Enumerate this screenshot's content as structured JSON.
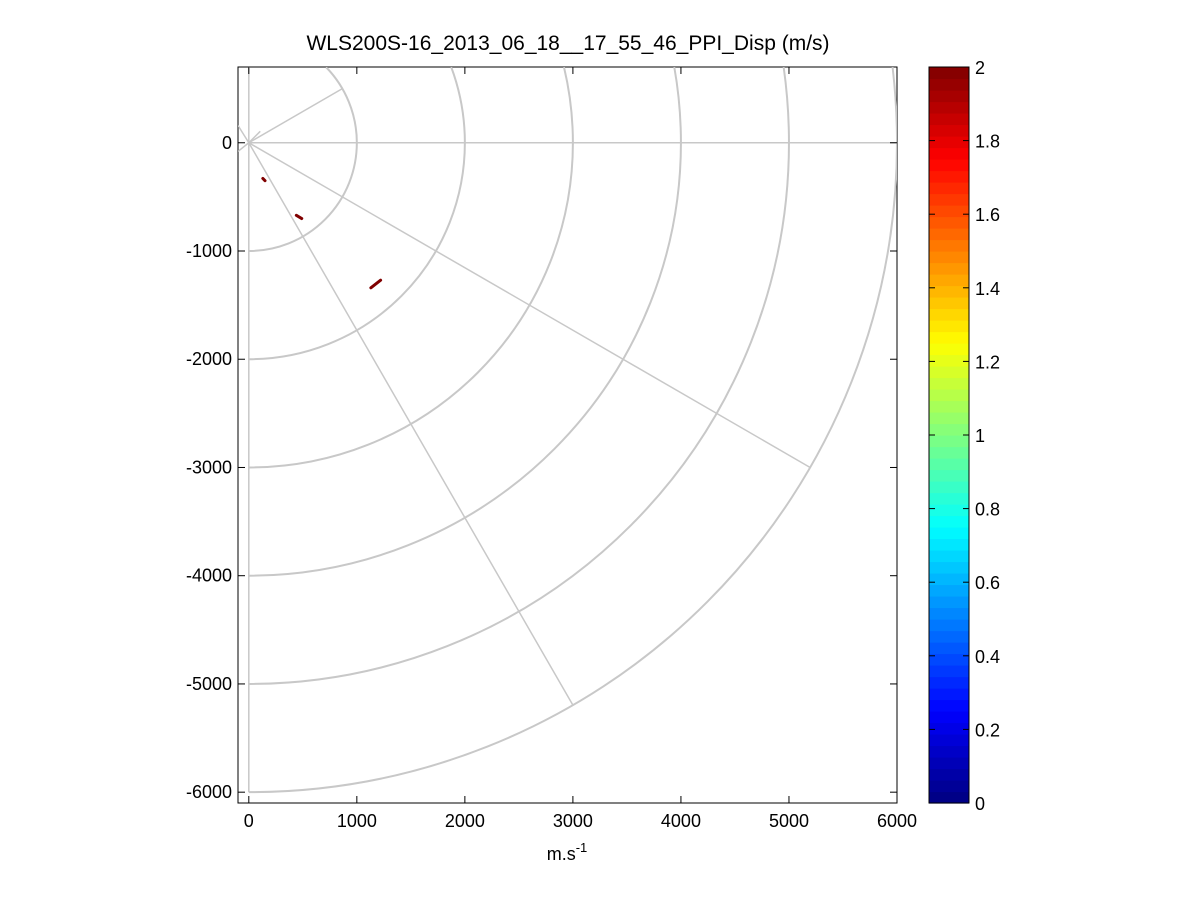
{
  "chart_data": {
    "type": "ppi_polar_scan",
    "title": "WLS200S-16_2013_06_18__17_55_46_PPI_Disp (m/s)",
    "xlabel_base": "m.s",
    "xlabel_exponent": "-1",
    "ylabel": "",
    "xlim": [
      -100,
      6000
    ],
    "ylim": [
      -6100,
      700
    ],
    "x_ticks": [
      0,
      1000,
      2000,
      3000,
      4000,
      5000,
      6000
    ],
    "x_tick_labels": [
      "0",
      "1000",
      "2000",
      "3000",
      "4000",
      "5000",
      "6000"
    ],
    "y_ticks": [
      0,
      -1000,
      -2000,
      -3000,
      -4000,
      -5000,
      -6000
    ],
    "y_tick_labels": [
      "0",
      "-1000",
      "-2000",
      "-3000",
      "-4000",
      "-5000",
      "-6000"
    ],
    "range_rings": [
      1000,
      2000,
      3000,
      4000,
      5000,
      6000
    ],
    "radial_lines": [
      {
        "angle_deg": 30,
        "max_range": 1000
      },
      {
        "angle_deg": 0,
        "max_range": 6000
      },
      {
        "angle_deg": -30,
        "max_range": 6000
      },
      {
        "angle_deg": -60,
        "max_range": 6000
      }
    ],
    "origin_lines": [
      {
        "angle_deg": 90,
        "max_range": 700
      },
      {
        "angle_deg": -90,
        "max_range": 6000
      },
      {
        "angle_deg": 45,
        "max_range": 150
      }
    ],
    "data_segments": [
      {
        "x1": 130,
        "y1": -330,
        "x2": 150,
        "y2": -350,
        "value": 2
      },
      {
        "x1": 440,
        "y1": -670,
        "x2": 490,
        "y2": -700,
        "value": 2
      },
      {
        "x1": 1130,
        "y1": -1340,
        "x2": 1220,
        "y2": -1270,
        "value": 2
      }
    ],
    "colorbar": {
      "min": 0,
      "max": 2,
      "ticks": [
        0,
        0.2,
        0.4,
        0.6,
        0.8,
        1,
        1.2,
        1.4,
        1.6,
        1.8,
        2
      ],
      "tick_labels": [
        "0",
        "0.2",
        "0.4",
        "0.6",
        "0.8",
        "1",
        "1.2",
        "1.4",
        "1.6",
        "1.8",
        "2"
      ],
      "colormap": "jet",
      "levels": 64
    }
  }
}
